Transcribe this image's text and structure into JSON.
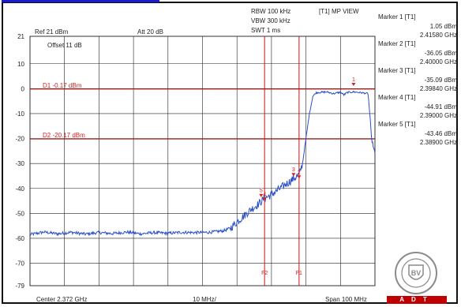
{
  "header": {
    "rbw": "RBW 100 kHz",
    "vbw": "VBW 300 kHz",
    "swt": "SWT 1 ms",
    "view": "[T1] MP VIEW",
    "ref": "Ref 21 dBm",
    "att": "Att 20 dB",
    "offset": "Offset 11 dB"
  },
  "footer": {
    "center": "Center 2.372 GHz",
    "per_div": "10 MHz/",
    "span": "Span 100 MHz"
  },
  "markers": [
    {
      "name": "Marker 1 [T1]",
      "level": "1.05 dBm",
      "freq": "2.41580 GHz",
      "label": "1"
    },
    {
      "name": "Marker 2 [T1]",
      "level": "-36.05 dBm",
      "freq": "2.40000 GHz",
      "label": "2"
    },
    {
      "name": "Marker 3 [T1]",
      "level": "-35.09 dBm",
      "freq": "2.39840 GHz",
      "label": "3"
    },
    {
      "name": "Marker 4 [T1]",
      "level": "-44.91 dBm",
      "freq": "2.39000 GHz",
      "label": "4"
    },
    {
      "name": "Marker 5 [T1]",
      "level": "-43.46 dBm",
      "freq": "2.38900 GHz",
      "label": "5"
    }
  ],
  "logo": {
    "text": "ADT",
    "ring_text": "BUREAU VERITAS 1828"
  },
  "chart_data": {
    "type": "line",
    "xlabel": "",
    "ylabel": "",
    "xlim": [
      2322,
      2422
    ],
    "ylim": [
      -79,
      21
    ],
    "y_ticks": [
      21,
      10,
      0,
      -10,
      -20,
      -30,
      -40,
      -50,
      -60,
      -70,
      -79
    ],
    "x_grid_step": 10,
    "grid": true,
    "display_lines": [
      {
        "label": "D1 -0.17 dBm",
        "value": -0.17
      },
      {
        "label": "D2 -20.17 dBm",
        "value": -20.17
      }
    ],
    "frequency_lines": [
      {
        "label": "F2",
        "x": 2390
      },
      {
        "label": "F1",
        "x": 2400
      }
    ],
    "series": [
      {
        "color": "#2a4fc8",
        "x": [
          2322,
          2326,
          2330,
          2334,
          2338,
          2342,
          2346,
          2350,
          2354,
          2358,
          2362,
          2366,
          2370,
          2374,
          2378,
          2380,
          2382,
          2384,
          2386,
          2388,
          2390,
          2392,
          2394,
          2396,
          2398,
          2400,
          2401,
          2402,
          2403,
          2404,
          2405,
          2406,
          2408,
          2410,
          2412,
          2413,
          2414,
          2416,
          2418,
          2420,
          2420.5,
          2421,
          2422
        ],
        "y": [
          -58.5,
          -57.5,
          -58.2,
          -57.6,
          -58.3,
          -57.7,
          -58.1,
          -57.5,
          -58.2,
          -57.7,
          -58.0,
          -57.6,
          -57.7,
          -57.6,
          -57.0,
          -56.0,
          -53.5,
          -51.0,
          -48.5,
          -46.5,
          -44.0,
          -42.5,
          -40.5,
          -38.5,
          -36.5,
          -34.5,
          -30.0,
          -20.0,
          -10.0,
          -3.0,
          -1.6,
          -1.5,
          -1.3,
          -2.0,
          -1.4,
          -2.5,
          -1.5,
          -1.3,
          -1.6,
          -2.0,
          -10.0,
          -20.0,
          -26.0
        ]
      }
    ],
    "marker_points": [
      {
        "label": "1",
        "x": 2415.8,
        "y": 1.05
      },
      {
        "label": "2",
        "x": 2400.0,
        "y": -36.05
      },
      {
        "label": "3",
        "x": 2398.4,
        "y": -35.09
      },
      {
        "label": "4",
        "x": 2390.0,
        "y": -44.91
      },
      {
        "label": "5",
        "x": 2389.0,
        "y": -43.46
      }
    ]
  }
}
